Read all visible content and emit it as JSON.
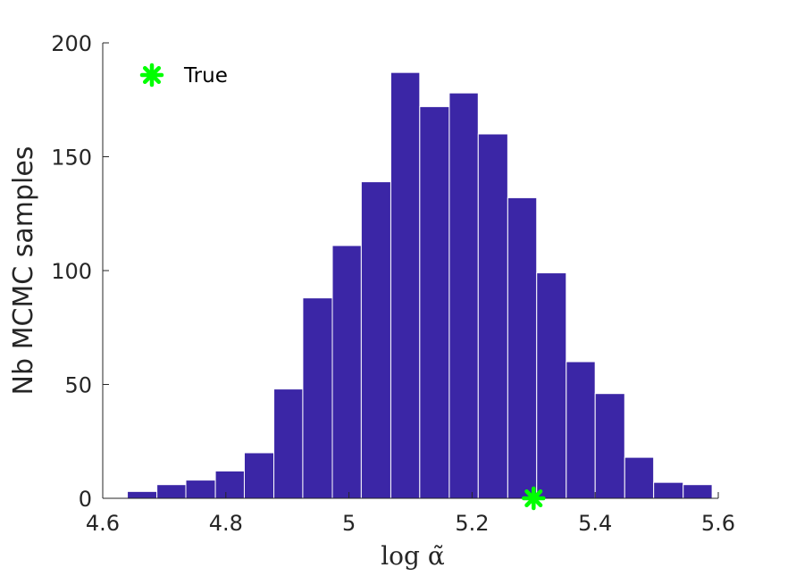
{
  "chart_data": {
    "type": "bar",
    "title": "",
    "xlabel": "log α̃",
    "ylabel": "Nb MCMC samples",
    "xlim": [
      4.6,
      5.6
    ],
    "ylim": [
      0,
      200
    ],
    "xticks": [
      "4.6",
      "4.8",
      "5",
      "5.2",
      "5.4",
      "5.6"
    ],
    "yticks": [
      "0",
      "50",
      "100",
      "150",
      "200"
    ],
    "grid": false,
    "bar_color": "#3b26a6",
    "bins": [
      {
        "x0": 4.64,
        "x1": 4.688,
        "count": 3
      },
      {
        "x0": 4.688,
        "x1": 4.735,
        "count": 6
      },
      {
        "x0": 4.735,
        "x1": 4.783,
        "count": 8
      },
      {
        "x0": 4.783,
        "x1": 4.83,
        "count": 12
      },
      {
        "x0": 4.83,
        "x1": 4.878,
        "count": 20
      },
      {
        "x0": 4.878,
        "x1": 4.925,
        "count": 48
      },
      {
        "x0": 4.925,
        "x1": 4.973,
        "count": 88
      },
      {
        "x0": 4.973,
        "x1": 5.02,
        "count": 111
      },
      {
        "x0": 5.02,
        "x1": 5.068,
        "count": 139
      },
      {
        "x0": 5.068,
        "x1": 5.115,
        "count": 187
      },
      {
        "x0": 5.115,
        "x1": 5.163,
        "count": 172
      },
      {
        "x0": 5.163,
        "x1": 5.21,
        "count": 178
      },
      {
        "x0": 5.21,
        "x1": 5.258,
        "count": 160
      },
      {
        "x0": 5.258,
        "x1": 5.305,
        "count": 132
      },
      {
        "x0": 5.305,
        "x1": 5.353,
        "count": 99
      },
      {
        "x0": 5.353,
        "x1": 5.4,
        "count": 60
      },
      {
        "x0": 5.4,
        "x1": 5.448,
        "count": 46
      },
      {
        "x0": 5.448,
        "x1": 5.495,
        "count": 18
      },
      {
        "x0": 5.495,
        "x1": 5.543,
        "count": 7
      },
      {
        "x0": 5.543,
        "x1": 5.59,
        "count": 6
      }
    ],
    "true_marker": {
      "x": 5.3,
      "y": 0,
      "color": "#00ff00"
    },
    "legend": {
      "placement": "top-left",
      "entries": [
        {
          "label": "True",
          "marker": "asterisk",
          "color": "#00ff00"
        }
      ]
    }
  }
}
